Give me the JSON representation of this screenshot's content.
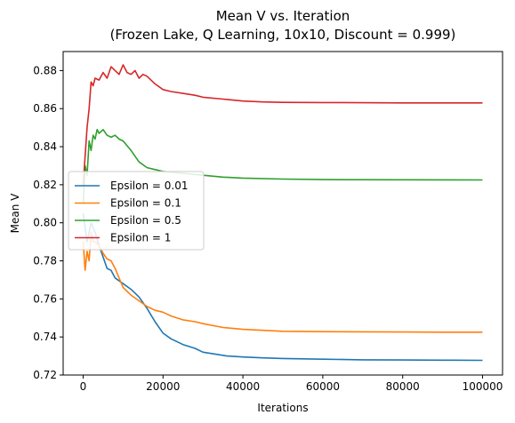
{
  "chart_data": {
    "type": "line",
    "title": "Mean V vs. Iteration",
    "subtitle": "(Frozen Lake, Q Learning, 10x10, Discount = 0.999)",
    "xlabel": "Iterations",
    "ylabel": "Mean V",
    "xlim": [
      -5000,
      105000
    ],
    "ylim": [
      0.72,
      0.89
    ],
    "xticks": [
      0,
      20000,
      40000,
      60000,
      80000,
      100000
    ],
    "xtick_labels": [
      "0",
      "20000",
      "40000",
      "60000",
      "80000",
      "100000"
    ],
    "yticks": [
      0.72,
      0.74,
      0.76,
      0.78,
      0.8,
      0.82,
      0.84,
      0.86,
      0.88
    ],
    "ytick_labels": [
      "0.72",
      "0.74",
      "0.76",
      "0.78",
      "0.80",
      "0.82",
      "0.84",
      "0.86",
      "0.88"
    ],
    "grid": false,
    "legend_position": "center-left",
    "series": [
      {
        "name": "Epsilon = 0.01",
        "color": "#1f77b4",
        "x": [
          0,
          1000,
          2000,
          3000,
          4000,
          5000,
          6000,
          7000,
          8000,
          10000,
          12000,
          14000,
          16000,
          18000,
          20000,
          22000,
          25000,
          28000,
          30000,
          33000,
          36000,
          40000,
          45000,
          50000,
          55000,
          60000,
          70000,
          80000,
          90000,
          100000
        ],
        "values": [
          0.805,
          0.79,
          0.8,
          0.795,
          0.788,
          0.782,
          0.776,
          0.775,
          0.771,
          0.768,
          0.765,
          0.761,
          0.755,
          0.748,
          0.742,
          0.739,
          0.736,
          0.734,
          0.732,
          0.731,
          0.73,
          0.7295,
          0.729,
          0.7287,
          0.7285,
          0.7283,
          0.728,
          0.7279,
          0.7278,
          0.7277
        ]
      },
      {
        "name": "Epsilon = 0.1",
        "color": "#ff7f0e",
        "x": [
          0,
          500,
          1000,
          1500,
          2000,
          2500,
          3000,
          4000,
          5000,
          6000,
          7000,
          8000,
          9000,
          10000,
          12000,
          14000,
          16000,
          18000,
          20000,
          22000,
          25000,
          28000,
          30000,
          35000,
          40000,
          45000,
          50000,
          60000,
          70000,
          80000,
          90000,
          100000
        ],
        "values": [
          0.79,
          0.775,
          0.785,
          0.78,
          0.795,
          0.79,
          0.79,
          0.788,
          0.784,
          0.781,
          0.78,
          0.776,
          0.771,
          0.766,
          0.762,
          0.759,
          0.756,
          0.754,
          0.753,
          0.751,
          0.749,
          0.748,
          0.747,
          0.745,
          0.744,
          0.7435,
          0.743,
          0.7428,
          0.7427,
          0.7426,
          0.7425,
          0.7425
        ]
      },
      {
        "name": "Epsilon = 0.5",
        "color": "#2ca02c",
        "x": [
          0,
          500,
          1000,
          1500,
          2000,
          2500,
          3000,
          3500,
          4000,
          5000,
          6000,
          7000,
          8000,
          9000,
          10000,
          12000,
          14000,
          16000,
          18000,
          20000,
          25000,
          30000,
          35000,
          40000,
          50000,
          60000,
          80000,
          100000
        ],
        "values": [
          0.81,
          0.83,
          0.825,
          0.843,
          0.838,
          0.846,
          0.844,
          0.849,
          0.847,
          0.849,
          0.846,
          0.845,
          0.846,
          0.844,
          0.843,
          0.838,
          0.832,
          0.829,
          0.828,
          0.827,
          0.826,
          0.825,
          0.824,
          0.8235,
          0.823,
          0.8227,
          0.8226,
          0.8225
        ]
      },
      {
        "name": "Epsilon = 1",
        "color": "#d62728",
        "x": [
          0,
          500,
          1000,
          1500,
          2000,
          2500,
          3000,
          4000,
          5000,
          6000,
          7000,
          8000,
          9000,
          10000,
          11000,
          12000,
          13000,
          14000,
          15000,
          16000,
          18000,
          20000,
          22000,
          25000,
          28000,
          30000,
          35000,
          40000,
          45000,
          50000,
          60000,
          70000,
          80000,
          90000,
          100000
        ],
        "values": [
          0.82,
          0.835,
          0.85,
          0.86,
          0.874,
          0.872,
          0.876,
          0.875,
          0.879,
          0.876,
          0.882,
          0.88,
          0.878,
          0.883,
          0.879,
          0.878,
          0.88,
          0.876,
          0.878,
          0.877,
          0.873,
          0.87,
          0.869,
          0.868,
          0.867,
          0.866,
          0.865,
          0.864,
          0.8635,
          0.8633,
          0.8632,
          0.8631,
          0.863,
          0.863,
          0.863
        ]
      }
    ]
  }
}
